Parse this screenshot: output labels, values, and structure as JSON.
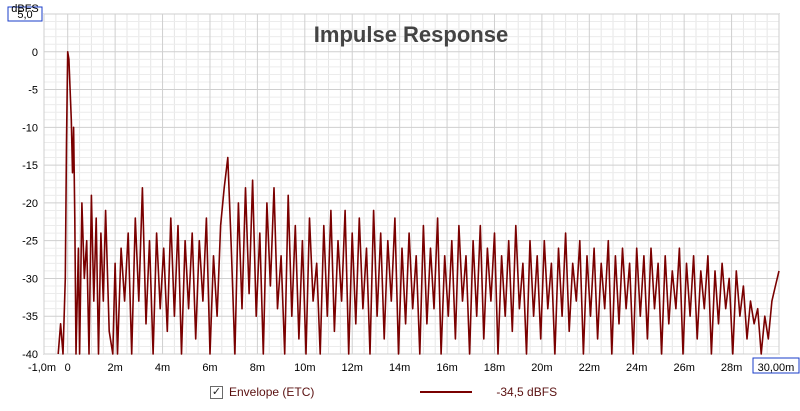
{
  "chart_data": {
    "type": "line",
    "title": "Impulse Response",
    "ylabel": "dBFS",
    "xlabel": "",
    "xlim": [
      -1.0,
      30.0
    ],
    "ylim": [
      -40,
      5
    ],
    "xticks": [
      {
        "v": -1.0,
        "label": "-1,0m"
      },
      {
        "v": 0,
        "label": "0"
      },
      {
        "v": 2,
        "label": "2m"
      },
      {
        "v": 4,
        "label": "4m"
      },
      {
        "v": 6,
        "label": "6m"
      },
      {
        "v": 8,
        "label": "8m"
      },
      {
        "v": 10,
        "label": "10m"
      },
      {
        "v": 12,
        "label": "12m"
      },
      {
        "v": 14,
        "label": "14m"
      },
      {
        "v": 16,
        "label": "16m"
      },
      {
        "v": 18,
        "label": "18m"
      },
      {
        "v": 20,
        "label": "20m"
      },
      {
        "v": 22,
        "label": "22m"
      },
      {
        "v": 24,
        "label": "24m"
      },
      {
        "v": 26,
        "label": "26m"
      },
      {
        "v": 28,
        "label": "28m"
      },
      {
        "v": 30,
        "label": "30,00m"
      }
    ],
    "yticks": [
      {
        "v": 5,
        "label": "5,0"
      },
      {
        "v": 0,
        "label": "0"
      },
      {
        "v": -5,
        "label": "-5"
      },
      {
        "v": -10,
        "label": "-10"
      },
      {
        "v": -15,
        "label": "-15"
      },
      {
        "v": -20,
        "label": "-20"
      },
      {
        "v": -25,
        "label": "-25"
      },
      {
        "v": -30,
        "label": "-30"
      },
      {
        "v": -35,
        "label": "-35"
      },
      {
        "v": -40,
        "label": "-40"
      }
    ],
    "grid": true,
    "legend_position": "bottom",
    "series": [
      {
        "name": "Envelope (ETC)",
        "color": "#7a0000",
        "points": [
          [
            -0.4,
            -40
          ],
          [
            -0.3,
            -36
          ],
          [
            -0.2,
            -40
          ],
          [
            -0.1,
            -30
          ],
          [
            -0.05,
            -12
          ],
          [
            0.0,
            0
          ],
          [
            0.05,
            -1
          ],
          [
            0.1,
            -5
          ],
          [
            0.15,
            -9
          ],
          [
            0.2,
            -16
          ],
          [
            0.25,
            -10
          ],
          [
            0.3,
            -22
          ],
          [
            0.35,
            -40
          ],
          [
            0.45,
            -26
          ],
          [
            0.5,
            -40
          ],
          [
            0.6,
            -20
          ],
          [
            0.7,
            -30
          ],
          [
            0.8,
            -25
          ],
          [
            0.9,
            -40
          ],
          [
            1.0,
            -19
          ],
          [
            1.1,
            -33
          ],
          [
            1.2,
            -22
          ],
          [
            1.3,
            -40
          ],
          [
            1.4,
            -24
          ],
          [
            1.5,
            -33
          ],
          [
            1.6,
            -21
          ],
          [
            1.75,
            -37
          ],
          [
            1.9,
            -40
          ],
          [
            2.0,
            -28
          ],
          [
            2.1,
            -40
          ],
          [
            2.25,
            -26
          ],
          [
            2.4,
            -33
          ],
          [
            2.55,
            -24
          ],
          [
            2.7,
            -40
          ],
          [
            2.85,
            -22
          ],
          [
            3.0,
            -33
          ],
          [
            3.15,
            -18
          ],
          [
            3.3,
            -36
          ],
          [
            3.45,
            -25
          ],
          [
            3.6,
            -40
          ],
          [
            3.75,
            -24
          ],
          [
            3.9,
            -34
          ],
          [
            4.05,
            -26
          ],
          [
            4.2,
            -37
          ],
          [
            4.35,
            -22
          ],
          [
            4.5,
            -35
          ],
          [
            4.65,
            -23
          ],
          [
            4.8,
            -40
          ],
          [
            4.95,
            -25
          ],
          [
            5.1,
            -34
          ],
          [
            5.25,
            -24
          ],
          [
            5.4,
            -38
          ],
          [
            5.55,
            -25
          ],
          [
            5.7,
            -33
          ],
          [
            5.85,
            -22
          ],
          [
            6.0,
            -40
          ],
          [
            6.15,
            -27
          ],
          [
            6.3,
            -35
          ],
          [
            6.45,
            -23
          ],
          [
            6.6,
            -18
          ],
          [
            6.75,
            -14
          ],
          [
            6.9,
            -26
          ],
          [
            7.05,
            -40
          ],
          [
            7.2,
            -20
          ],
          [
            7.35,
            -34
          ],
          [
            7.5,
            -18
          ],
          [
            7.65,
            -32
          ],
          [
            7.8,
            -17
          ],
          [
            7.95,
            -35
          ],
          [
            8.1,
            -24
          ],
          [
            8.25,
            -40
          ],
          [
            8.4,
            -20
          ],
          [
            8.55,
            -31
          ],
          [
            8.7,
            -18
          ],
          [
            8.85,
            -34
          ],
          [
            9.0,
            -27
          ],
          [
            9.15,
            -40
          ],
          [
            9.3,
            -19
          ],
          [
            9.45,
            -35
          ],
          [
            9.6,
            -23
          ],
          [
            9.75,
            -38
          ],
          [
            9.9,
            -25
          ],
          [
            10.05,
            -40
          ],
          [
            10.2,
            -22
          ],
          [
            10.35,
            -33
          ],
          [
            10.5,
            -28
          ],
          [
            10.65,
            -40
          ],
          [
            10.8,
            -23
          ],
          [
            10.95,
            -35
          ],
          [
            11.1,
            -21
          ],
          [
            11.25,
            -37
          ],
          [
            11.4,
            -25
          ],
          [
            11.55,
            -33
          ],
          [
            11.7,
            -21
          ],
          [
            11.85,
            -40
          ],
          [
            12.0,
            -24
          ],
          [
            12.15,
            -36
          ],
          [
            12.3,
            -22
          ],
          [
            12.45,
            -34
          ],
          [
            12.6,
            -26
          ],
          [
            12.75,
            -40
          ],
          [
            12.9,
            -21
          ],
          [
            13.05,
            -35
          ],
          [
            13.2,
            -24
          ],
          [
            13.35,
            -38
          ],
          [
            13.5,
            -25
          ],
          [
            13.65,
            -33
          ],
          [
            13.8,
            -22
          ],
          [
            13.95,
            -40
          ],
          [
            14.1,
            -26
          ],
          [
            14.25,
            -36
          ],
          [
            14.4,
            -24
          ],
          [
            14.55,
            -34
          ],
          [
            14.7,
            -27
          ],
          [
            14.85,
            -40
          ],
          [
            15.0,
            -23
          ],
          [
            15.15,
            -36
          ],
          [
            15.3,
            -26
          ],
          [
            15.45,
            -34
          ],
          [
            15.6,
            -22
          ],
          [
            15.75,
            -40
          ],
          [
            15.9,
            -27
          ],
          [
            16.05,
            -35
          ],
          [
            16.2,
            -25
          ],
          [
            16.35,
            -38
          ],
          [
            16.5,
            -23
          ],
          [
            16.65,
            -33
          ],
          [
            16.8,
            -27
          ],
          [
            16.95,
            -40
          ],
          [
            17.1,
            -25
          ],
          [
            17.25,
            -35
          ],
          [
            17.4,
            -23
          ],
          [
            17.55,
            -38
          ],
          [
            17.7,
            -26
          ],
          [
            17.85,
            -33
          ],
          [
            18.0,
            -24
          ],
          [
            18.15,
            -40
          ],
          [
            18.3,
            -27
          ],
          [
            18.45,
            -35
          ],
          [
            18.6,
            -25
          ],
          [
            18.75,
            -37
          ],
          [
            18.9,
            -23
          ],
          [
            19.05,
            -34
          ],
          [
            19.2,
            -28
          ],
          [
            19.35,
            -40
          ],
          [
            19.5,
            -25
          ],
          [
            19.65,
            -35
          ],
          [
            19.8,
            -27
          ],
          [
            19.95,
            -38
          ],
          [
            20.1,
            -25
          ],
          [
            20.25,
            -34
          ],
          [
            20.4,
            -28
          ],
          [
            20.55,
            -40
          ],
          [
            20.7,
            -26
          ],
          [
            20.85,
            -35
          ],
          [
            21.0,
            -24
          ],
          [
            21.15,
            -37
          ],
          [
            21.3,
            -28
          ],
          [
            21.45,
            -33
          ],
          [
            21.6,
            -25
          ],
          [
            21.75,
            -40
          ],
          [
            21.9,
            -27
          ],
          [
            22.05,
            -35
          ],
          [
            22.2,
            -26
          ],
          [
            22.35,
            -38
          ],
          [
            22.5,
            -28
          ],
          [
            22.65,
            -34
          ],
          [
            22.8,
            -25
          ],
          [
            22.95,
            -40
          ],
          [
            23.1,
            -27
          ],
          [
            23.25,
            -36
          ],
          [
            23.4,
            -26
          ],
          [
            23.55,
            -34
          ],
          [
            23.7,
            -28
          ],
          [
            23.85,
            -40
          ],
          [
            24.0,
            -26
          ],
          [
            24.15,
            -35
          ],
          [
            24.3,
            -27
          ],
          [
            24.45,
            -38
          ],
          [
            24.6,
            -26
          ],
          [
            24.75,
            -34
          ],
          [
            24.9,
            -28
          ],
          [
            25.05,
            -40
          ],
          [
            25.2,
            -27
          ],
          [
            25.35,
            -36
          ],
          [
            25.5,
            -29
          ],
          [
            25.65,
            -34
          ],
          [
            25.8,
            -26
          ],
          [
            25.95,
            -40
          ],
          [
            26.1,
            -28
          ],
          [
            26.25,
            -35
          ],
          [
            26.4,
            -27
          ],
          [
            26.55,
            -38
          ],
          [
            26.7,
            -29
          ],
          [
            26.85,
            -34
          ],
          [
            27.0,
            -27
          ],
          [
            27.15,
            -40
          ],
          [
            27.3,
            -29
          ],
          [
            27.45,
            -36
          ],
          [
            27.6,
            -28
          ],
          [
            27.75,
            -34
          ],
          [
            27.9,
            -30
          ],
          [
            28.05,
            -40
          ],
          [
            28.2,
            -29
          ],
          [
            28.35,
            -35
          ],
          [
            28.5,
            -31
          ],
          [
            28.65,
            -38
          ],
          [
            28.8,
            -33
          ],
          [
            28.95,
            -36
          ],
          [
            29.1,
            -34
          ],
          [
            29.25,
            -40
          ],
          [
            29.4,
            -35
          ],
          [
            29.55,
            -38
          ],
          [
            29.7,
            -33
          ],
          [
            29.85,
            -31
          ],
          [
            30.0,
            -29
          ]
        ]
      }
    ],
    "legend": {
      "checked": true,
      "series_label": "Envelope (ETC)",
      "readout": "-34,5 dBFS"
    }
  }
}
